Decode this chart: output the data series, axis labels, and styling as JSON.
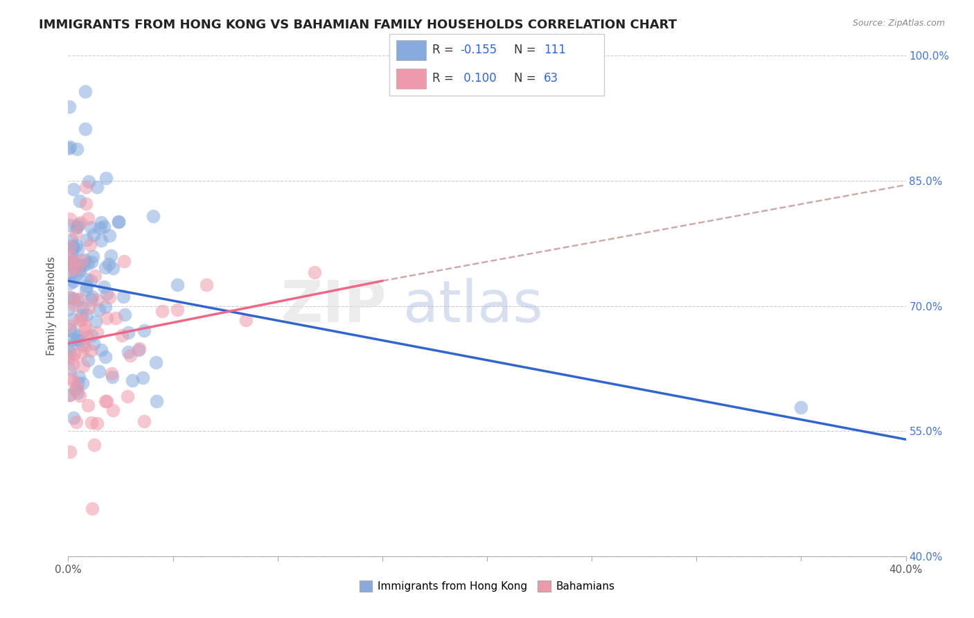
{
  "title": "IMMIGRANTS FROM HONG KONG VS BAHAMIAN FAMILY HOUSEHOLDS CORRELATION CHART",
  "source": "Source: ZipAtlas.com",
  "ylabel": "Family Households",
  "xlim": [
    0.0,
    40.0
  ],
  "ylim": [
    40.0,
    100.0
  ],
  "xticks": [
    0.0,
    5.0,
    10.0,
    15.0,
    20.0,
    25.0,
    30.0,
    35.0,
    40.0
  ],
  "yticks": [
    40.0,
    55.0,
    70.0,
    85.0,
    100.0
  ],
  "xticklabels": [
    "0.0%",
    "",
    "",
    "",
    "",
    "",
    "",
    "",
    "40.0%"
  ],
  "yticklabels_right": [
    "40.0%",
    "55.0%",
    "70.0%",
    "85.0%",
    "100.0%"
  ],
  "blue_color": "#88AADD",
  "pink_color": "#EE99AA",
  "blue_line_color": "#3366CC",
  "pink_line_color": "#EE6688",
  "gray_dashed_color": "#CCAAAA",
  "R_blue": -0.155,
  "N_blue": 111,
  "R_pink": 0.1,
  "N_pink": 63,
  "legend_blue_label": "Immigrants from Hong Kong",
  "legend_pink_label": "Bahamians",
  "title_fontsize": 13,
  "axis_label_fontsize": 11,
  "tick_fontsize": 11,
  "blue_line": [
    0.0,
    73.0,
    40.0,
    54.0
  ],
  "pink_solid_line": [
    0.0,
    65.5,
    15.0,
    73.0
  ],
  "pink_dashed_line": [
    15.0,
    73.0,
    40.0,
    84.5
  ],
  "watermark_zip_color": "#DDDDDD",
  "watermark_atlas_color": "#AABBDD"
}
